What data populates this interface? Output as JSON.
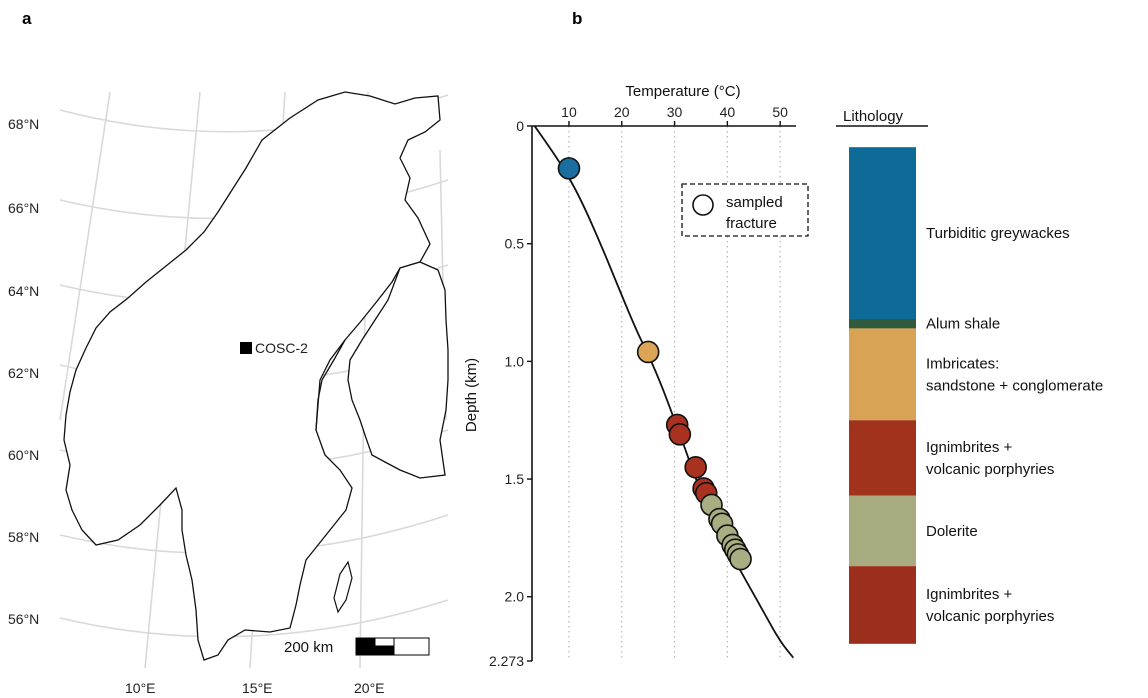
{
  "panels": {
    "a": "a",
    "b": "b"
  },
  "map": {
    "lat_labels": [
      "68°N",
      "66°N",
      "64°N",
      "62°N",
      "60°N",
      "58°N",
      "56°N"
    ],
    "lon_labels": [
      "10°E",
      "15°E",
      "20°E"
    ],
    "site_label": "COSC-2",
    "scale_label": "200 km"
  },
  "chart_data": {
    "type": "scatter",
    "xlabel": "Temperature (°C)",
    "ylabel": "Depth (km)",
    "x_ticks": [
      "10",
      "20",
      "30",
      "40",
      "50"
    ],
    "y_ticks": [
      "0",
      "0.5",
      "1.0",
      "1.5",
      "2.0",
      "2.273"
    ],
    "xlim": [
      3,
      53
    ],
    "ylim": [
      0,
      2.273
    ],
    "y_reversed": true,
    "grid": "vertical dotted",
    "legend": {
      "label_line1": "sampled",
      "label_line2": "fracture",
      "placement": "top-right"
    },
    "temperature_profile": [
      [
        3.5,
        0.0
      ],
      [
        6,
        0.08
      ],
      [
        9,
        0.18
      ],
      [
        12,
        0.3
      ],
      [
        16,
        0.5
      ],
      [
        20,
        0.72
      ],
      [
        23,
        0.88
      ],
      [
        25,
        0.97
      ],
      [
        27.5,
        1.1
      ],
      [
        30,
        1.25
      ],
      [
        32,
        1.37
      ],
      [
        34,
        1.5
      ],
      [
        36,
        1.6
      ],
      [
        38,
        1.7
      ],
      [
        41,
        1.83
      ],
      [
        44,
        1.95
      ],
      [
        47,
        2.07
      ],
      [
        50,
        2.19
      ],
      [
        52.5,
        2.26
      ]
    ],
    "fractures": [
      {
        "temp": 10,
        "depth": 0.18,
        "color": "#1a6ea0"
      },
      {
        "temp": 25,
        "depth": 0.96,
        "color": "#dba456"
      },
      {
        "temp": 30.5,
        "depth": 1.27,
        "color": "#a8321f"
      },
      {
        "temp": 31,
        "depth": 1.31,
        "color": "#a8321f"
      },
      {
        "temp": 34,
        "depth": 1.45,
        "color": "#a8321f"
      },
      {
        "temp": 35.5,
        "depth": 1.54,
        "color": "#a8321f"
      },
      {
        "temp": 36,
        "depth": 1.56,
        "color": "#a8321f"
      },
      {
        "temp": 37,
        "depth": 1.61,
        "color": "#a9ad82"
      },
      {
        "temp": 38.5,
        "depth": 1.67,
        "color": "#a9ad82"
      },
      {
        "temp": 39,
        "depth": 1.69,
        "color": "#a9ad82"
      },
      {
        "temp": 40,
        "depth": 1.74,
        "color": "#a9ad82"
      },
      {
        "temp": 41,
        "depth": 1.78,
        "color": "#a9ad82"
      },
      {
        "temp": 41.5,
        "depth": 1.8,
        "color": "#a9ad82"
      },
      {
        "temp": 42,
        "depth": 1.82,
        "color": "#a9ad82"
      },
      {
        "temp": 42.5,
        "depth": 1.84,
        "color": "#a9ad82"
      }
    ]
  },
  "lithology": {
    "title": "Lithology",
    "units": [
      {
        "top": 0.09,
        "base": 0.82,
        "color": "#0e6a97",
        "label": [
          "Turbiditic greywackes"
        ]
      },
      {
        "top": 0.82,
        "base": 0.86,
        "color": "#2f5a3c",
        "label": [
          "Alum shale"
        ]
      },
      {
        "top": 0.86,
        "base": 1.25,
        "color": "#d9a356",
        "label": [
          "Imbricates:",
          "sandstone + conglomerate"
        ]
      },
      {
        "top": 1.25,
        "base": 1.57,
        "color": "#a1321c",
        "label": [
          "Ignimbrites +",
          "volcanic porphyries"
        ]
      },
      {
        "top": 1.57,
        "base": 1.87,
        "color": "#a7ab7f",
        "label": [
          "Dolerite"
        ]
      },
      {
        "top": 1.87,
        "base": 2.2,
        "color": "#9b2f1b",
        "label": [
          "Ignimbrites +",
          "volcanic porphyries"
        ]
      }
    ]
  }
}
